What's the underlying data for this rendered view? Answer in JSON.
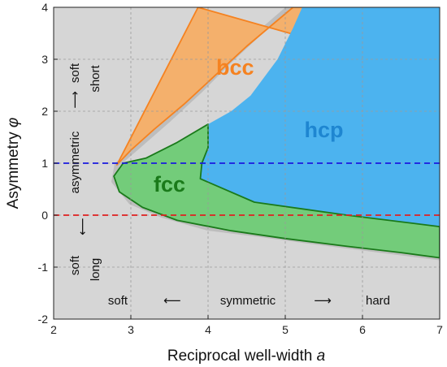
{
  "chart_data": {
    "type": "area",
    "title": "",
    "xlabel": "Reciprocal well-width",
    "xlabel_symbol": "a",
    "ylabel": "Asymmetry",
    "ylabel_symbol": "φ",
    "xlim": [
      2,
      7
    ],
    "ylim": [
      -2,
      4
    ],
    "xticks": [
      "2",
      "3",
      "4",
      "5",
      "6",
      "7"
    ],
    "yticks": [
      "-2",
      "-1",
      "0",
      "1",
      "2",
      "3",
      "4"
    ],
    "grid": true,
    "series": [
      {
        "name": "bcc",
        "color": "#f4b06c",
        "label_color": "#f58220",
        "label_pos": [
          4.35,
          2.7
        ],
        "boundary": [
          [
            2.82,
            0.97
          ],
          [
            3.0,
            1.25
          ],
          [
            3.3,
            1.65
          ],
          [
            3.7,
            2.15
          ],
          [
            4.1,
            2.7
          ],
          [
            4.5,
            3.25
          ],
          [
            4.9,
            3.75
          ],
          [
            5.1,
            4.0
          ],
          [
            5.95,
            4.0
          ],
          [
            6.25,
            3.0
          ],
          [
            3.87,
            4.0
          ]
        ]
      },
      {
        "name": "hcp",
        "color": "#4cb3ef",
        "label_color": "#1e86d1",
        "label_pos": [
          5.5,
          1.5
        ],
        "boundary": [
          [
            5.22,
            4.0
          ],
          [
            5.1,
            3.6
          ],
          [
            4.9,
            3.0
          ],
          [
            4.55,
            2.3
          ],
          [
            4.3,
            2.0
          ],
          [
            4.0,
            1.75
          ],
          [
            4.0,
            1.3
          ],
          [
            3.92,
            1.0
          ],
          [
            3.9,
            0.7
          ],
          [
            4.1,
            0.45
          ],
          [
            4.6,
            0.25
          ],
          [
            5.2,
            0.1
          ],
          [
            5.8,
            0.0
          ],
          [
            6.3,
            -0.1
          ],
          [
            7.0,
            -0.22
          ],
          [
            7.0,
            4.0
          ]
        ]
      },
      {
        "name": "fcc",
        "color": "#73cc7a",
        "label_color": "#1a7a1a",
        "label_pos": [
          3.5,
          0.45
        ],
        "boundary": [
          [
            2.9,
            1.0
          ],
          [
            2.78,
            0.75
          ],
          [
            2.85,
            0.45
          ],
          [
            3.15,
            0.15
          ],
          [
            3.6,
            -0.1
          ],
          [
            4.3,
            -0.3
          ],
          [
            5.0,
            -0.45
          ],
          [
            5.8,
            -0.6
          ],
          [
            6.5,
            -0.72
          ],
          [
            7.0,
            -0.82
          ],
          [
            7.0,
            -0.22
          ],
          [
            5.8,
            0.0
          ],
          [
            4.6,
            0.25
          ],
          [
            3.9,
            0.7
          ],
          [
            3.92,
            1.0
          ],
          [
            4.0,
            1.3
          ],
          [
            4.0,
            1.75
          ],
          [
            3.6,
            1.4
          ],
          [
            3.2,
            1.1
          ]
        ]
      }
    ],
    "outer_boundary": [
      [
        2.82,
        0.97
      ],
      [
        3.1,
        1.33
      ],
      [
        3.5,
        1.85
      ],
      [
        3.9,
        2.4
      ],
      [
        4.3,
        3.0
      ],
      [
        4.7,
        3.55
      ],
      [
        5.05,
        4.0
      ],
      [
        7.0,
        4.0
      ],
      [
        7.0,
        -0.82
      ],
      [
        6.2,
        -0.67
      ],
      [
        5.4,
        -0.52
      ],
      [
        4.7,
        -0.38
      ],
      [
        4.0,
        -0.25
      ],
      [
        3.4,
        0.0
      ],
      [
        3.0,
        0.25
      ],
      [
        2.78,
        0.65
      ]
    ],
    "reference_lines": [
      {
        "y": 1,
        "color": "#1a1adf",
        "style": "dashed"
      },
      {
        "y": 0,
        "color": "#e02020",
        "style": "dashed"
      }
    ],
    "annotations": {
      "left_top_soft": "soft",
      "left_top_short": "short",
      "left_asymmetric": "asymmetric",
      "left_up_arrow": "⟶",
      "left_down_arrow": "⟶",
      "left_bottom_soft": "soft",
      "left_bottom_long": "long",
      "bottom_soft": "soft",
      "bottom_left_arrow": "⟵",
      "bottom_symmetric": "symmetric",
      "bottom_right_arrow": "⟶",
      "bottom_hard": "hard"
    },
    "colors": {
      "background": "#d6d6d6",
      "grid": "#9a9a9a",
      "bcc_edge": "#f58220",
      "fcc_edge": "#1a7a1a",
      "outer_edge": "#bdbdbd"
    }
  }
}
